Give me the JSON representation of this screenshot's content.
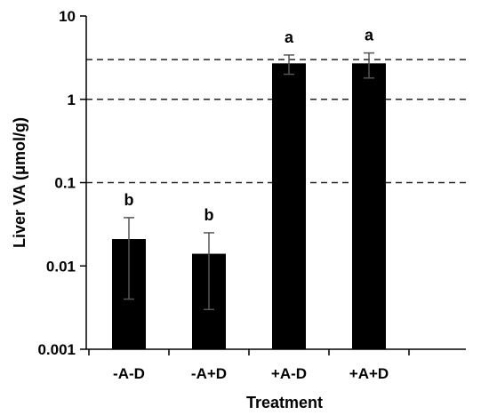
{
  "chart_data": {
    "type": "bar",
    "title": "",
    "xlabel": "Treatment",
    "ylabel": "Liver VA (μmol/g)",
    "yscale": "log",
    "ylim": [
      0.001,
      10
    ],
    "yticks": [
      {
        "value": 0.001,
        "label": "0.001"
      },
      {
        "value": 0.01,
        "label": "0.01"
      },
      {
        "value": 0.1,
        "label": "0.1"
      },
      {
        "value": 1,
        "label": "1"
      },
      {
        "value": 10,
        "label": "10"
      }
    ],
    "categories": [
      "-A-D",
      "-A+D",
      "+A-D",
      "+A+D"
    ],
    "values": [
      0.021,
      0.014,
      2.7,
      2.7
    ],
    "error_low": [
      0.004,
      0.003,
      2.0,
      1.8
    ],
    "error_high": [
      0.038,
      0.025,
      3.4,
      3.6
    ],
    "significance_labels": [
      "b",
      "b",
      "a",
      "a"
    ],
    "reference_lines": [
      0.1,
      1,
      3
    ],
    "bar_color": "#000000",
    "error_bar_color": "#555555",
    "reference_line_color": "#222222",
    "grid": false
  }
}
